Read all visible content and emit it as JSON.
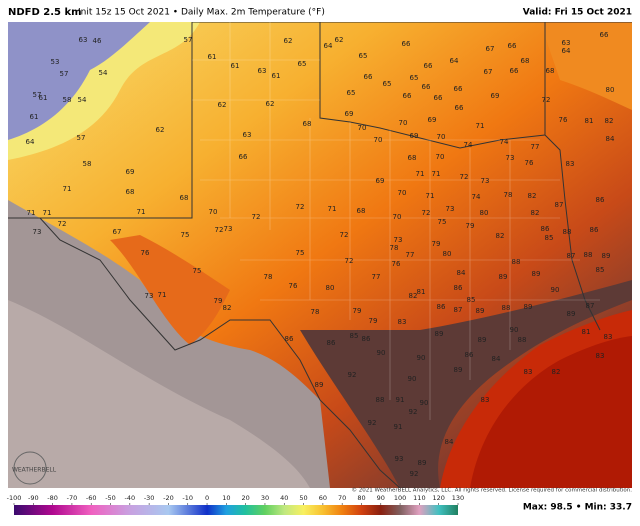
{
  "header": {
    "product": "NDFD 2.5 km",
    "description": "Init 15z 15 Oct 2021 • Daily Max. 2m Temperature (°F)",
    "valid": "Valid: Fri 15 Oct 2021"
  },
  "map": {
    "labels": [
      63,
      46,
      57,
      62,
      64,
      62,
      66,
      63,
      66,
      64,
      53,
      57,
      54,
      61,
      61,
      63,
      65,
      61,
      65,
      66,
      64,
      66,
      67,
      66,
      67,
      66,
      68,
      68,
      57,
      61,
      58,
      54,
      62,
      62,
      65,
      65,
      65,
      66,
      66,
      66,
      66,
      66,
      69,
      72,
      80,
      61,
      57,
      62,
      63,
      68,
      69,
      70,
      70,
      71,
      70,
      69,
      76,
      81,
      82,
      64,
      69,
      70,
      74,
      74,
      77,
      84,
      66,
      58,
      68,
      70,
      73,
      76,
      83,
      69,
      71,
      71,
      72,
      69,
      73,
      68,
      71,
      68,
      70,
      71,
      74,
      78,
      82,
      87,
      86,
      71,
      71,
      71,
      70,
      72,
      72,
      71,
      68,
      70,
      72,
      73,
      80,
      82,
      86,
      88,
      86,
      72,
      73,
      67,
      72,
      73,
      75,
      72,
      73,
      75,
      79,
      79,
      82,
      85,
      87,
      88,
      89,
      76,
      75,
      72,
      78,
      77,
      76,
      80,
      84,
      88,
      89,
      89,
      85,
      75,
      78,
      76,
      77,
      80,
      82,
      81,
      86,
      85,
      90,
      73,
      71,
      79,
      82,
      78,
      79,
      79,
      83,
      86,
      87,
      89,
      88,
      89,
      89,
      87,
      81,
      90,
      88,
      86,
      86,
      85,
      86,
      89,
      89,
      83,
      86,
      90,
      90,
      84,
      83,
      83,
      82,
      89,
      92,
      90,
      89,
      83,
      91,
      88,
      90,
      92,
      92,
      91,
      84,
      93,
      89,
      92
    ],
    "logo": "WEATHERBELL"
  },
  "footer": {
    "copyright": "© 2021 WeatherBELL Analytics, LLC. All rights reserved. License required for commercial distribution.",
    "stats": "Max: 98.5 • Min: 33.7"
  },
  "colorbar": {
    "ticks": [
      -100,
      -90,
      -80,
      -70,
      -60,
      -50,
      -40,
      -30,
      -20,
      -10,
      0,
      10,
      20,
      30,
      40,
      50,
      60,
      70,
      80,
      90,
      100,
      110,
      120,
      130
    ]
  }
}
